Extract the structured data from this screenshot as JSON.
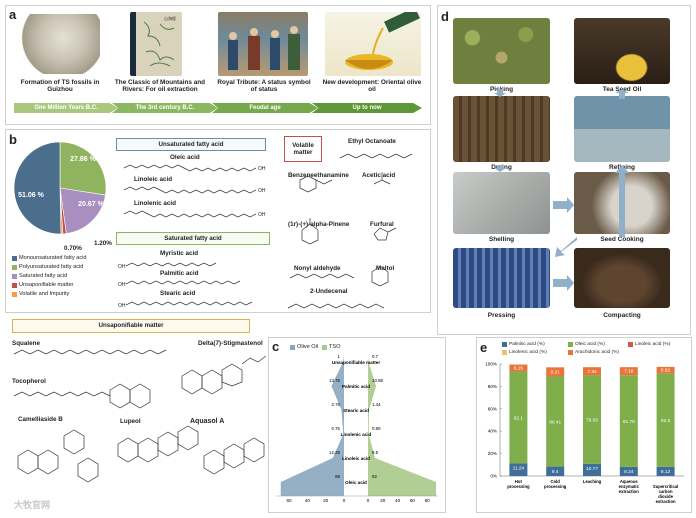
{
  "panels": {
    "a": "a",
    "b": "b",
    "c": "c",
    "d": "d",
    "e": "e"
  },
  "panel_a": {
    "captions": [
      "Formation of TS fossils in Guizhou",
      "The Classic of Mountains and Rivers: For oil extraction",
      "Royal Tribute: A status symbol of status",
      "New development: Oriental olive oil"
    ],
    "timeline": [
      "One Million Years B.C.",
      "The 3rd century B.C.",
      "Feudal age",
      "Up to now"
    ]
  },
  "panel_b": {
    "pie": {
      "slices": [
        {
          "name": "Monounsaturated fatty acid",
          "value": 51.06,
          "label": "51.06 %",
          "color": "#4a6e8c"
        },
        {
          "name": "Polyunsaturated fatty acid",
          "value": 27.86,
          "label": "27.86 %",
          "color": "#8fb35e"
        },
        {
          "name": "Saturated fatty acid",
          "value": 20.67,
          "label": "20.67 %",
          "color": "#a88fc0"
        },
        {
          "name": "Unsaponifiable matter",
          "value": 1.2,
          "label": "1.20%",
          "color": "#c0504d"
        },
        {
          "name": "Volatile and Impurity",
          "value": 0.7,
          "label": "0.70%",
          "color": "#f0a050"
        }
      ]
    },
    "headers": {
      "unsat": "Unsaturated fatty acid",
      "sat": "Saturated fatty acid",
      "volatile": "Volatile matter",
      "unsap": "Unsaponifiable matter"
    },
    "unsat_acids": [
      "Oleic acid",
      "Linoleic acid",
      "Linolenic acid"
    ],
    "sat_acids": [
      "Myristic acid",
      "Palmitic acid",
      "Stearic acid"
    ],
    "volatiles": [
      "Ethyl Octanoate",
      "Benzeneethanamine",
      "Acetic acid",
      "(1r)-(+)-alpha-Pinene",
      "Furfural",
      "Nonyl aldehyde",
      "Maltol",
      "2-Undecenal"
    ],
    "unsap_compounds": [
      "Squalene",
      "Delta(7)-Stigmastenol",
      "Tocopherol",
      "Camelliaside B",
      "Lupeol",
      "Aquasol A"
    ],
    "oh": "OH"
  },
  "panel_c": {
    "legend": [
      {
        "name": "Olive Oil",
        "color": "#8aa6bf"
      },
      {
        "name": "TSO",
        "color": "#a9c98a"
      }
    ],
    "chart_data": {
      "type": "bar",
      "categories": [
        "Unsaponifiable matter",
        "Palmitic acid",
        "Stearic acid",
        "Linolenic acid",
        "Linoleic acid",
        "Oleic acid"
      ],
      "series": [
        {
          "name": "Olive Oil",
          "values": [
            1,
            13.75,
            2.75,
            0.75,
            12.25,
            69
          ]
        },
        {
          "name": "TSO",
          "values": [
            0.7,
            10.88,
            1.44,
            0.89,
            9.5,
            92
          ]
        }
      ],
      "value_labels": {
        "Olive Oil": [
          "1",
          "13.75",
          "2.75",
          "0.75",
          "12.25",
          "69"
        ],
        "TSO": [
          "0.7",
          "10.88",
          "1.44",
          "0.89",
          "9.5",
          "92"
        ]
      },
      "xticks_left": [
        "60",
        "40",
        "20",
        "0"
      ],
      "xticks_right": [
        "0",
        "20",
        "40",
        "60",
        "80"
      ]
    }
  },
  "panel_d": {
    "steps": [
      "Picking",
      "Tea Seed Oil",
      "Drying",
      "Refining",
      "Shelling",
      "Seed Cooking",
      "Pressing",
      "Compacting"
    ]
  },
  "panel_e": {
    "chart_data": {
      "type": "bar",
      "stacked": true,
      "categories": [
        "Hot processing",
        "Cold processing",
        "Leaching",
        "Aqueous enzymatic extraction",
        "Supercritical carbon dioxide extraction"
      ],
      "series": [
        {
          "name": "Palmitic acid (%)",
          "values": [
            11.24,
            8.4,
            10.77,
            8.24,
            8.12
          ],
          "color": "#3f6f99"
        },
        {
          "name": "Oleic acid (%)",
          "values": [
            82.1,
            80.41,
            79.05,
            81.76,
            83.5
          ],
          "color": "#7fae4a"
        },
        {
          "name": "Linoleic acid (%)",
          "values": [
            0,
            0,
            0,
            0,
            0
          ],
          "color": "#d9544f"
        },
        {
          "name": "Linolenic acid (%)",
          "values": [
            0,
            0,
            0,
            0,
            0
          ],
          "color": "#e8c36a"
        },
        {
          "name": "Arachidonic acid (%)",
          "values": [
            6.15,
            8.21,
            7.34,
            7.18,
            5.82
          ],
          "color": "#e8763a"
        }
      ],
      "labels": {
        "Palmitic acid (%)": [
          "11.24",
          "8.4",
          "10.77",
          "8.24",
          "8.12"
        ],
        "Oleic acid (%)": [
          "82.1",
          "80.41",
          "79.05",
          "81.76",
          "83.5"
        ],
        "Arachidonic acid (%)": [
          "6.15",
          "8.21",
          "7.34",
          "7.18",
          "5.82"
        ]
      },
      "yticks": [
        "100%",
        "80%",
        "60%",
        "40%",
        "20%",
        "0%"
      ],
      "ylim": [
        0,
        100
      ]
    }
  },
  "watermark": "大牧官网"
}
